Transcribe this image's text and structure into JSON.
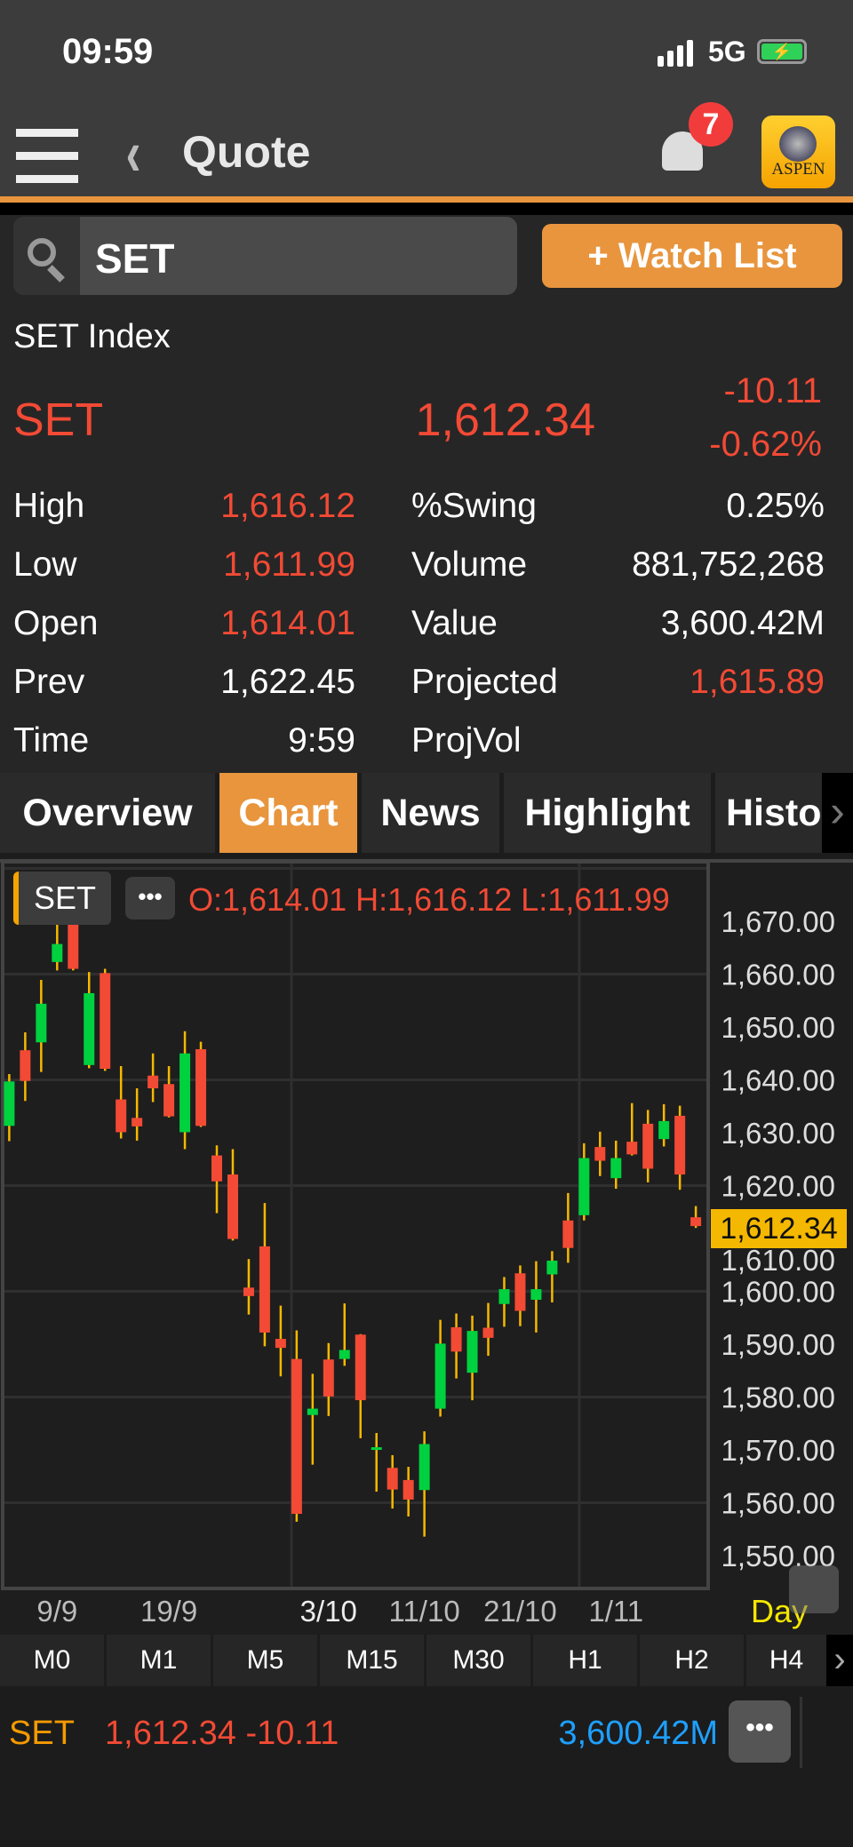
{
  "status_bar": {
    "time": "09:59",
    "network": "5G",
    "battery_icon": "battery-charging-icon"
  },
  "header": {
    "title": "Quote",
    "notification_count": "7",
    "logo_text": "ASPEN"
  },
  "search": {
    "value": "SET"
  },
  "watch_list_label": "+ Watch List",
  "quote": {
    "name": "SET Index",
    "symbol": "SET",
    "last": "1,612.34",
    "change": "-10.11",
    "percent_change": "-0.62%",
    "stats": [
      {
        "label": "High",
        "value": "1,616.12",
        "value_color": "red",
        "label2": "%Swing",
        "value2": "0.25%",
        "value2_color": "white"
      },
      {
        "label": "Low",
        "value": "1,611.99",
        "value_color": "red",
        "label2": "Volume",
        "value2": "881,752,268",
        "value2_color": "white"
      },
      {
        "label": "Open",
        "value": "1,614.01",
        "value_color": "red",
        "label2": "Value",
        "value2": "3,600.42M",
        "value2_color": "white"
      },
      {
        "label": "Prev",
        "value": "1,622.45",
        "value_color": "white",
        "label2": "Projected",
        "value2": "1,615.89",
        "value2_color": "red"
      },
      {
        "label": "Time",
        "value": "9:59",
        "value_color": "white",
        "label2": "ProjVol",
        "value2": "",
        "value2_color": "white"
      }
    ]
  },
  "tabs": [
    {
      "label": "Overview",
      "active": false
    },
    {
      "label": "Chart",
      "active": true
    },
    {
      "label": "News",
      "active": false
    },
    {
      "label": "Highlight",
      "active": false
    },
    {
      "label": "Histor",
      "active": false
    }
  ],
  "chart_data": {
    "type": "candlestick",
    "symbol_chip": "SET",
    "ohlc_label": "O:1,614.01  H:1,616.12  L:1,611.99",
    "period": "Day",
    "last_price_label": "1,612.34",
    "ylim": [
      1545,
      1681
    ],
    "yticks": [
      "1,550.00",
      "1,560.00",
      "1,570.00",
      "1,580.00",
      "1,590.00",
      "1,600.00",
      "1,610.00",
      "1,620.00",
      "1,630.00",
      "1,640.00",
      "1,650.00",
      "1,660.00",
      "1,670.00"
    ],
    "xticks": [
      {
        "label": "9/9",
        "index": 3
      },
      {
        "label": "19/9",
        "index": 10
      },
      {
        "label": "3/10",
        "index": 20
      },
      {
        "label": "11/10",
        "index": 26
      },
      {
        "label": "21/10",
        "index": 32
      },
      {
        "label": "1/11",
        "index": 38
      }
    ],
    "colors": {
      "up": "#00d13f",
      "down": "#f24a35",
      "wick": "#f5b800"
    },
    "candles": [
      [
        1631.3,
        1641.1,
        1628.4,
        1639.7
      ],
      [
        1645.6,
        1649.0,
        1636.0,
        1639.8
      ],
      [
        1647.1,
        1658.9,
        1641.5,
        1654.4
      ],
      [
        1662.3,
        1672.8,
        1660.7,
        1665.7
      ],
      [
        1670.7,
        1671.2,
        1660.7,
        1661.0
      ],
      [
        1642.8,
        1660.4,
        1642.2,
        1656.4
      ],
      [
        1660.2,
        1661.0,
        1641.7,
        1642.1
      ],
      [
        1636.3,
        1642.6,
        1628.9,
        1630.1
      ],
      [
        1632.8,
        1638.4,
        1628.5,
        1631.2
      ],
      [
        1640.8,
        1645.0,
        1635.8,
        1638.4
      ],
      [
        1639.2,
        1642.6,
        1632.9,
        1633.1
      ],
      [
        1630.1,
        1649.2,
        1626.9,
        1645.0
      ],
      [
        1645.8,
        1647.2,
        1631.1,
        1631.3
      ],
      [
        1625.7,
        1627.6,
        1614.8,
        1620.8
      ],
      [
        1622.1,
        1626.9,
        1609.6,
        1609.9
      ],
      [
        1600.7,
        1606.1,
        1595.6,
        1599.1
      ],
      [
        1608.5,
        1616.7,
        1589.6,
        1592.2
      ],
      [
        1591.0,
        1597.3,
        1583.9,
        1589.3
      ],
      [
        1587.2,
        1592.6,
        1556.4,
        1557.9
      ],
      [
        1576.6,
        1584.4,
        1567.2,
        1577.8
      ],
      [
        1587.1,
        1590.2,
        1576.4,
        1580.1
      ],
      [
        1587.2,
        1597.7,
        1585.9,
        1588.9
      ],
      [
        1591.8,
        1591.9,
        1572.2,
        1579.4
      ],
      [
        1570.2,
        1573.2,
        1562.1,
        1570.5
      ],
      [
        1566.6,
        1569.0,
        1558.9,
        1562.5
      ],
      [
        1564.3,
        1566.8,
        1557.4,
        1560.6
      ],
      [
        1562.4,
        1573.5,
        1553.6,
        1571.1
      ],
      [
        1577.8,
        1594.6,
        1576.3,
        1590.1
      ],
      [
        1593.2,
        1595.8,
        1583.5,
        1588.6
      ],
      [
        1584.6,
        1595.4,
        1579.4,
        1592.5
      ],
      [
        1593.1,
        1597.8,
        1587.8,
        1591.2
      ],
      [
        1597.6,
        1602.7,
        1593.3,
        1600.4
      ],
      [
        1603.4,
        1604.9,
        1593.4,
        1596.3
      ],
      [
        1598.4,
        1605.7,
        1592.2,
        1600.4
      ],
      [
        1603.2,
        1607.6,
        1597.9,
        1605.8
      ],
      [
        1613.4,
        1618.6,
        1605.4,
        1608.2
      ],
      [
        1614.4,
        1628.0,
        1613.4,
        1625.2
      ],
      [
        1627.3,
        1630.2,
        1621.8,
        1624.7
      ],
      [
        1621.4,
        1628.5,
        1619.4,
        1625.2
      ],
      [
        1628.3,
        1635.6,
        1625.7,
        1625.9
      ],
      [
        1631.7,
        1634.3,
        1620.6,
        1623.2
      ],
      [
        1628.8,
        1635.4,
        1627.4,
        1632.2
      ],
      [
        1633.2,
        1635.1,
        1619.2,
        1622.1
      ],
      [
        1614.01,
        1616.12,
        1611.99,
        1612.34
      ]
    ]
  },
  "timeframes": [
    "M0",
    "M1",
    "M5",
    "M15",
    "M30",
    "H1",
    "H2",
    "H4"
  ],
  "bottom_bar": {
    "symbol": "SET",
    "price_change": "1,612.34 -10.11",
    "value": "3,600.42M"
  }
}
